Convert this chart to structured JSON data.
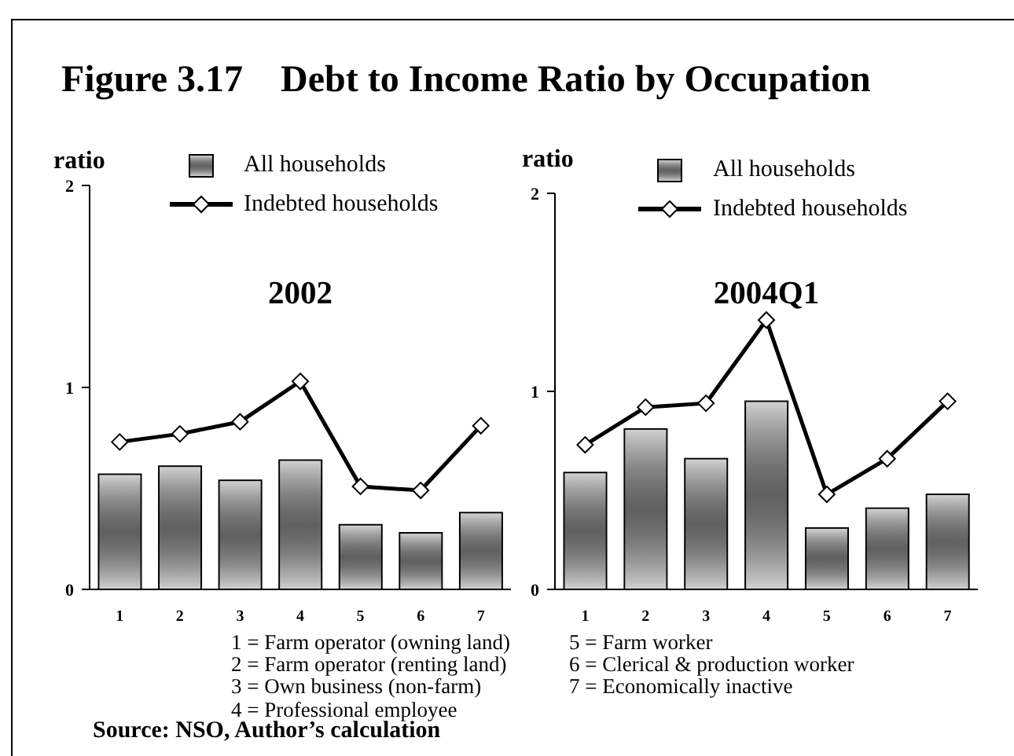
{
  "chart_data": [
    {
      "type": "bar",
      "title": "Figure 3.17    Debt to Income Ratio by Occupation",
      "subtitle": "2002",
      "ylabel": "ratio",
      "categories": [
        "1",
        "2",
        "3",
        "4",
        "5",
        "6",
        "7"
      ],
      "series": [
        {
          "name": "All households",
          "color": "#8a8a8a",
          "values": [
            0.57,
            0.61,
            0.54,
            0.64,
            0.32,
            0.28,
            0.38
          ]
        },
        {
          "name": "Indebted households",
          "type": "line",
          "color": "#000000",
          "values": [
            0.73,
            0.77,
            0.83,
            1.03,
            0.51,
            0.49,
            0.81
          ]
        }
      ],
      "ylim": [
        0,
        2
      ],
      "yticks": [
        0,
        1,
        2
      ],
      "legend": "top",
      "marker": "diamond",
      "annotations": [
        "1 = Farm operator (owning land)",
        "2 = Farm operator (renting land)",
        "3 = Own business (non-farm)",
        "4 = Professional employee",
        "Source: NSO, Author’s calculation"
      ]
    },
    {
      "type": "bar",
      "subtitle": "2004Q1",
      "ylabel": "ratio",
      "categories": [
        "1",
        "2",
        "3",
        "4",
        "5",
        "6",
        "7"
      ],
      "series": [
        {
          "name": "All households",
          "color": "#8a8a8a",
          "values": [
            0.59,
            0.81,
            0.66,
            0.95,
            0.31,
            0.41,
            0.48
          ]
        },
        {
          "name": "Indebted households",
          "type": "line",
          "color": "#000000",
          "values": [
            0.73,
            0.92,
            0.94,
            1.36,
            0.48,
            0.66,
            0.95
          ]
        }
      ],
      "ylim": [
        0,
        2
      ],
      "yticks": [
        0,
        1,
        2
      ],
      "legend": "top",
      "marker": "diamond",
      "annotations": [
        "5 = Farm worker",
        "6 = Clerical & production worker",
        "7 = Economically inactive"
      ]
    }
  ]
}
